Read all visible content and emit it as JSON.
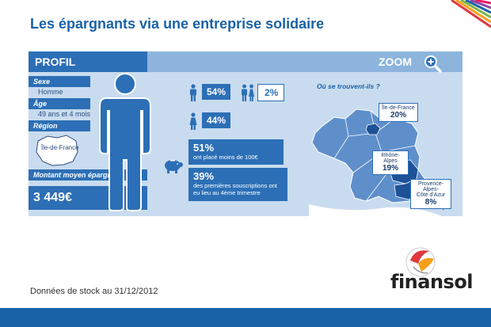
{
  "title": "Les épargnants via une entreprise solidaire",
  "profil": {
    "header": "PROFIL",
    "sexe_label": "Sexe",
    "sexe_value": "Homme",
    "age_label": "Âge",
    "age_value": "49 ans et 4 mois",
    "region_label": "Région",
    "region_value": "Île-de-France",
    "montant_label": "Montant moyen épargné",
    "montant_value": "3 449€"
  },
  "gender": {
    "men_pct": "54%",
    "couple_pct": "2%",
    "women_pct": "44%"
  },
  "stats": {
    "s1_big": "51%",
    "s1_small": "ont placé moins de 100€",
    "s2_big": "39%",
    "s2_small_1": "des premières souscriptions ont",
    "s2_small_2": "eu lieu au 4ème trimestre"
  },
  "zoom": {
    "label": "ZOOM",
    "question": "Où se trouvent-ils ?",
    "regions": [
      {
        "name": "Île-de-France",
        "pct": "20%"
      },
      {
        "name": "Rhône-Alpes",
        "pct": "19%"
      },
      {
        "name_1": "Provence-Alpes-",
        "name_2": "Côte d'Azur",
        "pct": "8%"
      }
    ]
  },
  "footnote": "Données de stock au 31/12/2012",
  "logo": "finansol",
  "colors": {
    "primary": "#2c6fb6",
    "light": "#c9dcef",
    "header": "#8cb4dc",
    "title": "#1a62a8",
    "map": "#5f8fcb",
    "highlight": "#1d5296"
  }
}
